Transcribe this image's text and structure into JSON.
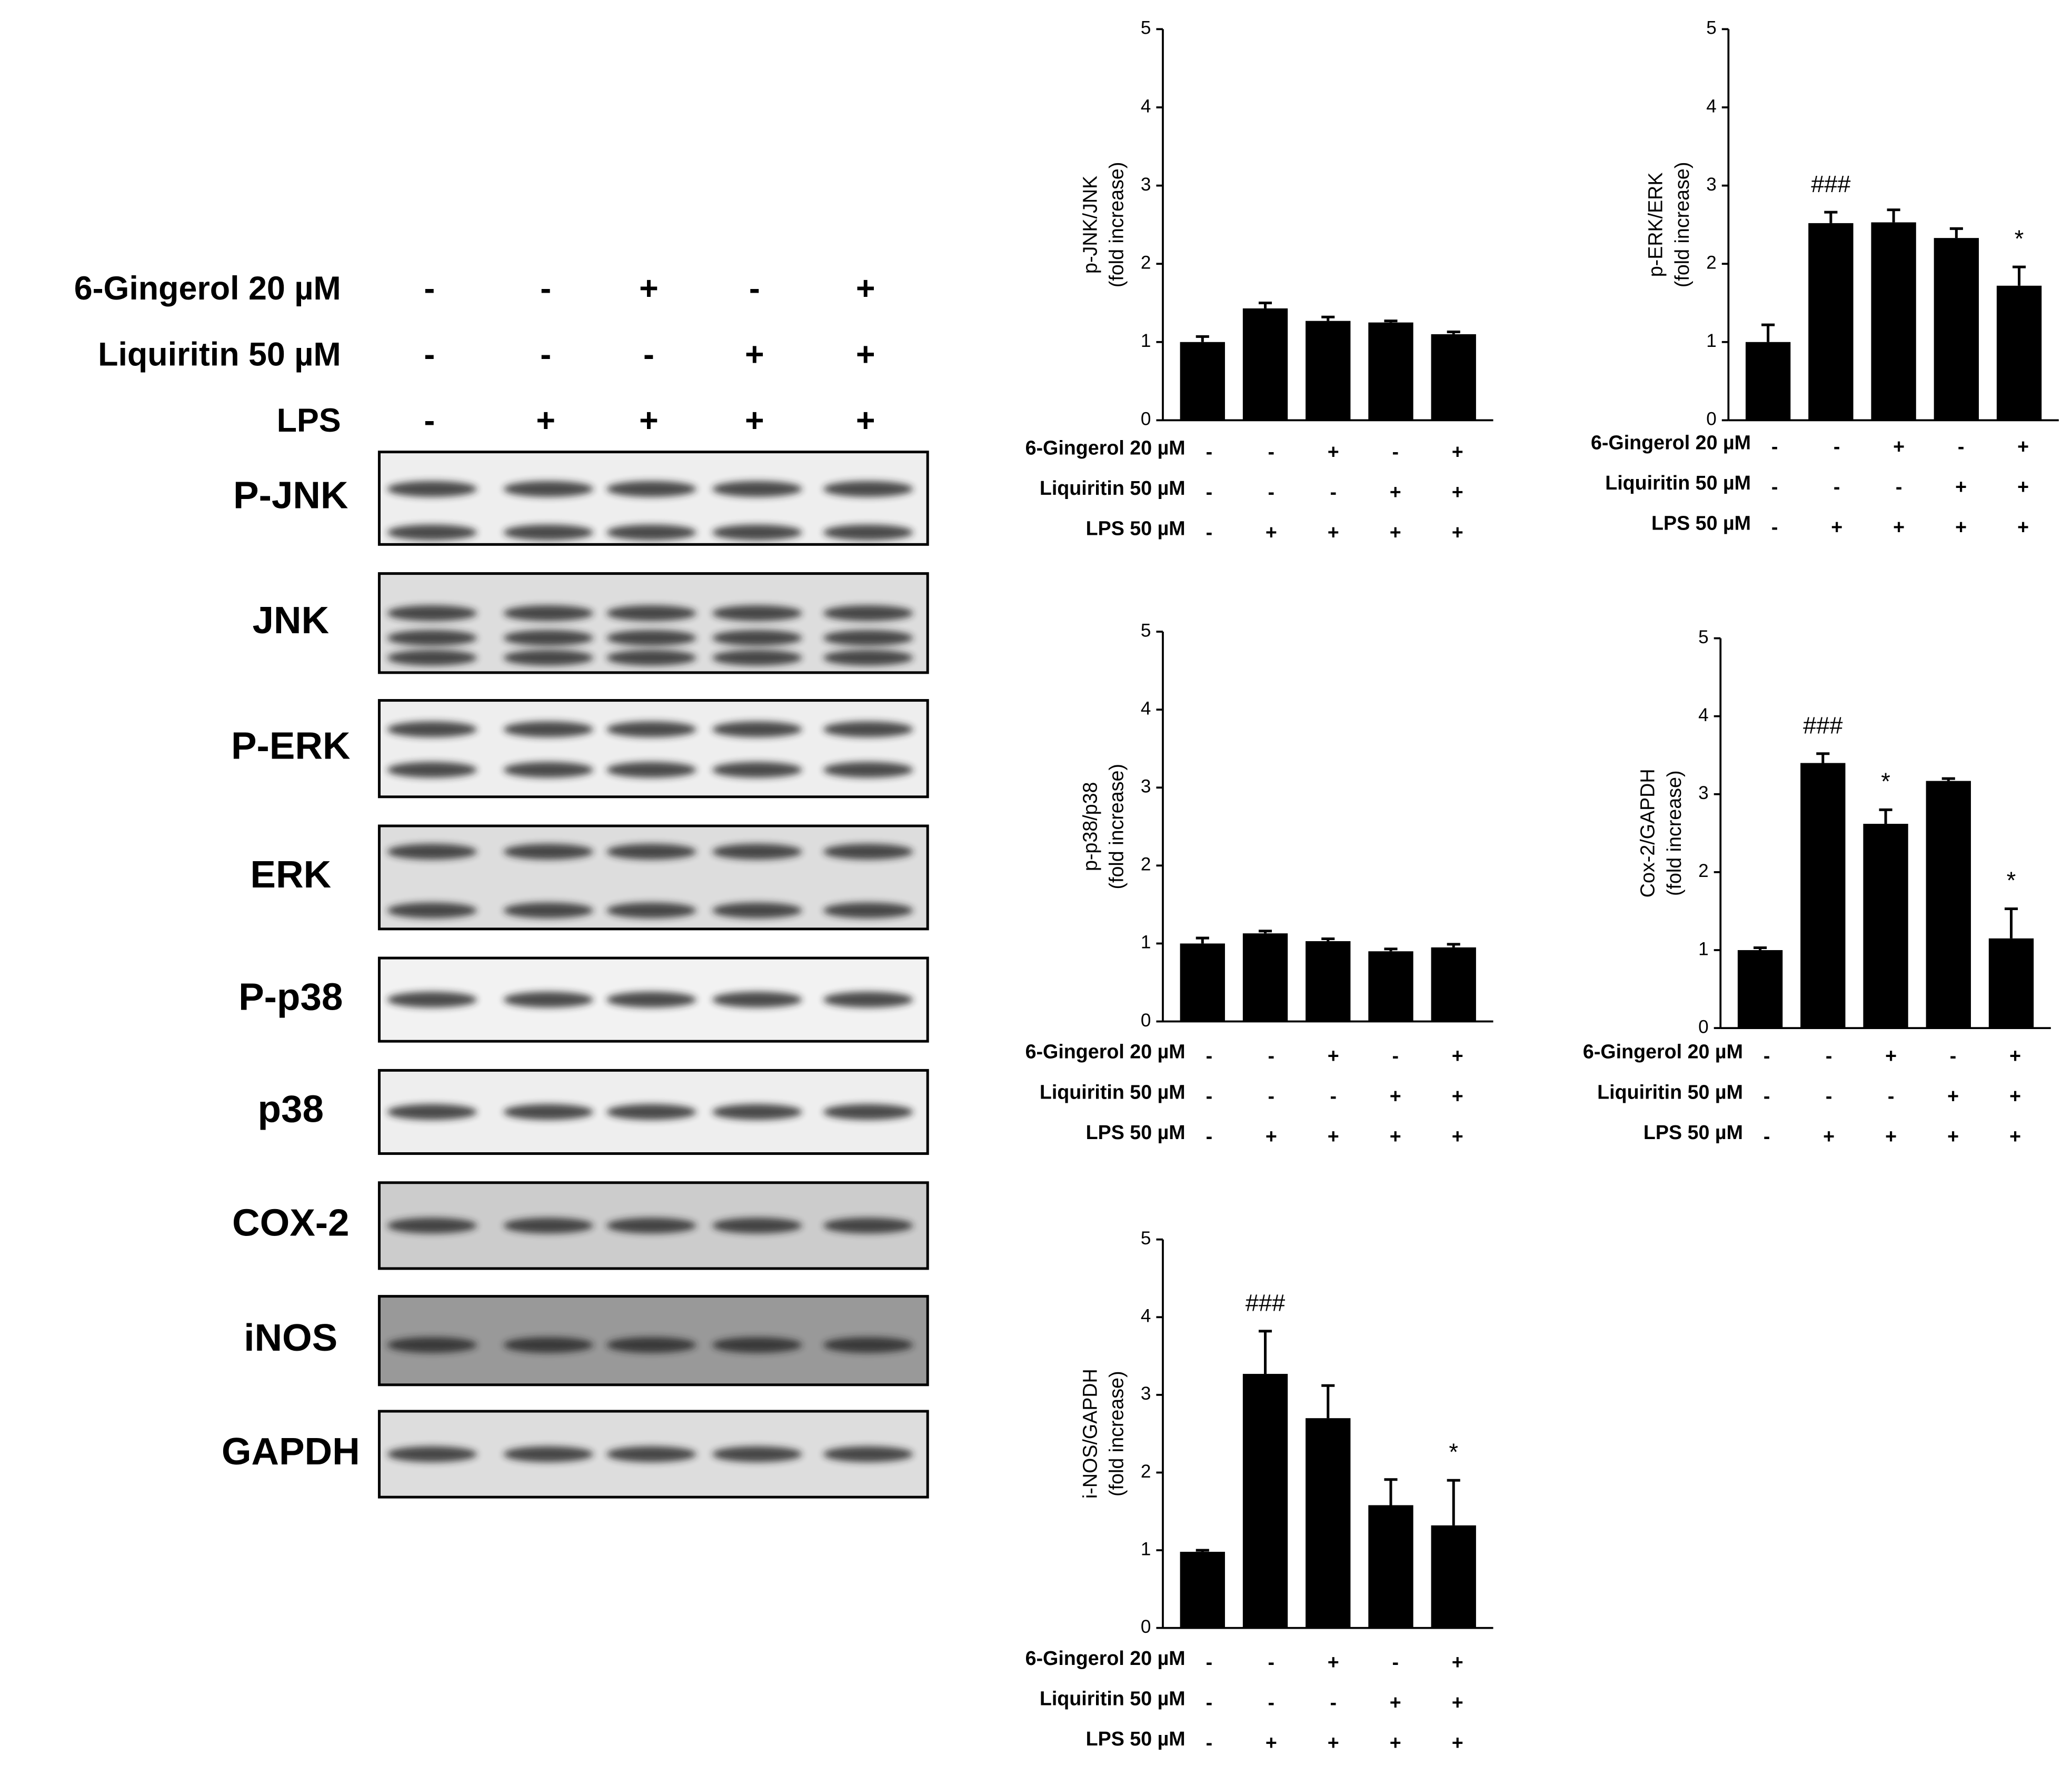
{
  "blot": {
    "treatments": [
      {
        "label": "6-Gingerol 20 µM",
        "signs": [
          "-",
          "-",
          "+",
          "-",
          "+"
        ]
      },
      {
        "label": "Liquiritin 50 µM",
        "signs": [
          "-",
          "-",
          "-",
          "+",
          "+"
        ]
      },
      {
        "label": "LPS",
        "signs": [
          "-",
          "+",
          "+",
          "+",
          "+"
        ]
      }
    ],
    "bands": [
      "P-JNK",
      "JNK",
      "P-ERK",
      "ERK",
      "P-p38",
      "p38",
      "COX-2",
      "iNOS",
      "GAPDH"
    ]
  },
  "chart_data": [
    {
      "type": "bar",
      "ylabel": [
        "p-JNK/JNK",
        "(fold increase)"
      ],
      "color": "#000000",
      "values": [
        1.0,
        1.43,
        1.27,
        1.25,
        1.1
      ],
      "errors": [
        0.07,
        0.07,
        0.05,
        0.02,
        0.03
      ],
      "annotations": [
        null,
        null,
        null,
        null,
        null
      ],
      "ylim": [
        0,
        5
      ],
      "yticks": [
        0,
        1,
        2,
        3,
        4,
        5
      ],
      "treatments": [
        {
          "label": "6-Gingerol 20 µM",
          "signs": [
            "-",
            "-",
            "+",
            "-",
            "+"
          ]
        },
        {
          "label": "Liquiritin 50 µM",
          "signs": [
            "-",
            "-",
            "-",
            "+",
            "+"
          ]
        },
        {
          "label": "LPS 50 µM",
          "signs": [
            "-",
            "+",
            "+",
            "+",
            "+"
          ]
        }
      ]
    },
    {
      "type": "bar",
      "ylabel": [
        "p-ERK/ERK",
        "(fold increase)"
      ],
      "color": "#000000",
      "values": [
        1.0,
        2.52,
        2.53,
        2.33,
        1.72
      ],
      "errors": [
        0.22,
        0.14,
        0.16,
        0.12,
        0.24
      ],
      "annotations": [
        null,
        "###",
        null,
        null,
        "*"
      ],
      "ylim": [
        0,
        5
      ],
      "yticks": [
        0,
        1,
        2,
        3,
        4,
        5
      ],
      "treatments": [
        {
          "label": "6-Gingerol 20 µM",
          "signs": [
            "-",
            "-",
            "+",
            "-",
            "+"
          ]
        },
        {
          "label": "Liquiritin 50 µM",
          "signs": [
            "-",
            "-",
            "-",
            "+",
            "+"
          ]
        },
        {
          "label": "LPS 50 µM",
          "signs": [
            "-",
            "+",
            "+",
            "+",
            "+"
          ]
        }
      ]
    },
    {
      "type": "bar",
      "ylabel": [
        "p-p38/p38",
        "(fold increase)"
      ],
      "color": "#000000",
      "values": [
        1.0,
        1.13,
        1.03,
        0.9,
        0.95
      ],
      "errors": [
        0.07,
        0.03,
        0.03,
        0.03,
        0.04
      ],
      "annotations": [
        null,
        null,
        null,
        null,
        null
      ],
      "ylim": [
        0,
        5
      ],
      "yticks": [
        0,
        1,
        2,
        3,
        4,
        5
      ],
      "treatments": [
        {
          "label": "6-Gingerol 20 µM",
          "signs": [
            "-",
            "-",
            "+",
            "-",
            "+"
          ]
        },
        {
          "label": "Liquiritin 50 µM",
          "signs": [
            "-",
            "-",
            "-",
            "+",
            "+"
          ]
        },
        {
          "label": "LPS 50 µM",
          "signs": [
            "-",
            "+",
            "+",
            "+",
            "+"
          ]
        }
      ]
    },
    {
      "type": "bar",
      "ylabel": [
        "Cox-2/GAPDH",
        "(fold increase)"
      ],
      "color": "#000000",
      "values": [
        1.0,
        3.4,
        2.62,
        3.17,
        1.15
      ],
      "errors": [
        0.03,
        0.12,
        0.18,
        0.03,
        0.38
      ],
      "annotations": [
        null,
        "###",
        "*",
        null,
        "*"
      ],
      "ylim": [
        0,
        5
      ],
      "yticks": [
        0,
        1,
        2,
        3,
        4,
        5
      ],
      "treatments": [
        {
          "label": "6-Gingerol 20 µM",
          "signs": [
            "-",
            "-",
            "+",
            "-",
            "+"
          ]
        },
        {
          "label": "Liquiritin 50 µM",
          "signs": [
            "-",
            "-",
            "-",
            "+",
            "+"
          ]
        },
        {
          "label": "LPS 50 µM",
          "signs": [
            "-",
            "+",
            "+",
            "+",
            "+"
          ]
        }
      ]
    },
    {
      "type": "bar",
      "ylabel": [
        "i-NOS/GAPDH",
        "(fold increase)"
      ],
      "color": "#000000",
      "values": [
        0.98,
        3.27,
        2.7,
        1.58,
        1.32
      ],
      "errors": [
        0.02,
        0.55,
        0.42,
        0.33,
        0.58
      ],
      "annotations": [
        null,
        "###",
        null,
        null,
        "*"
      ],
      "ylim": [
        0,
        5
      ],
      "yticks": [
        0,
        1,
        2,
        3,
        4,
        5
      ],
      "treatments": [
        {
          "label": "6-Gingerol 20 µM",
          "signs": [
            "-",
            "-",
            "+",
            "-",
            "+"
          ]
        },
        {
          "label": "Liquiritin 50 µM",
          "signs": [
            "-",
            "-",
            "-",
            "+",
            "+"
          ]
        },
        {
          "label": "LPS 50 µM",
          "signs": [
            "-",
            "+",
            "+",
            "+",
            "+"
          ]
        }
      ]
    }
  ]
}
